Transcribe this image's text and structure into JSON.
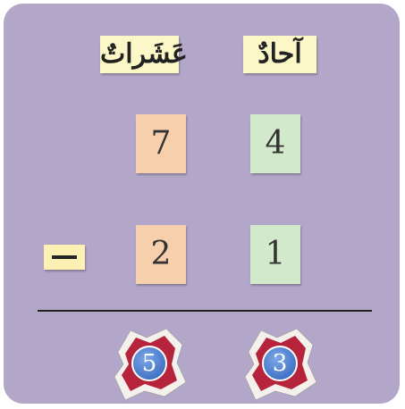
{
  "headers": {
    "tens": "عَشَراتٌ",
    "ones": "آحادٌ"
  },
  "rows": [
    [
      "7",
      "4"
    ],
    [
      "2",
      "1"
    ]
  ],
  "result": [
    "5",
    "3"
  ]
}
